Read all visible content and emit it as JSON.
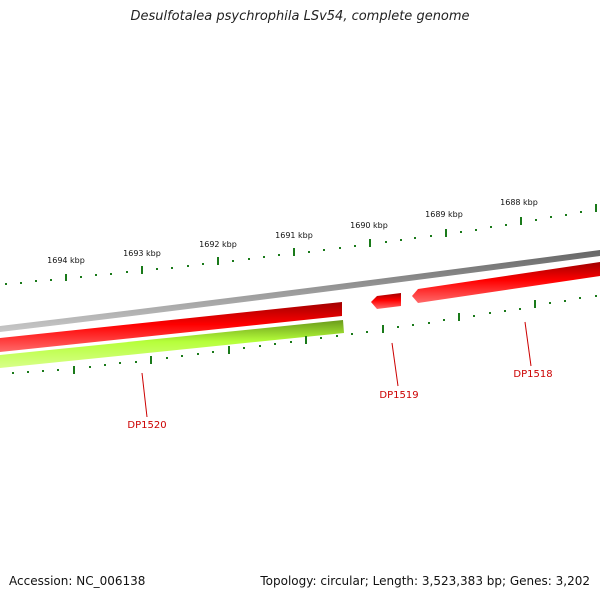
{
  "title": "Desulfotalea psychrophila LSv54, complete genome",
  "footer": {
    "accession": "Accession: NC_006138",
    "summary": "Topology: circular; Length: 3,523,383 bp; Genes: 3,202"
  },
  "scale_ticks": [
    "1694 kbp",
    "1693 kbp",
    "1692 kbp",
    "1691 kbp",
    "1690 kbp",
    "1689 kbp",
    "1688 kbp"
  ],
  "gene_labels": [
    "DP1520",
    "DP1519",
    "DP1518"
  ],
  "colors": {
    "backbone": "#808080",
    "forward_gene": "#ee0000",
    "reverse_gene": "#aaff33",
    "ticks": "#1a7a1a",
    "gene_label": "#cc0000"
  }
}
